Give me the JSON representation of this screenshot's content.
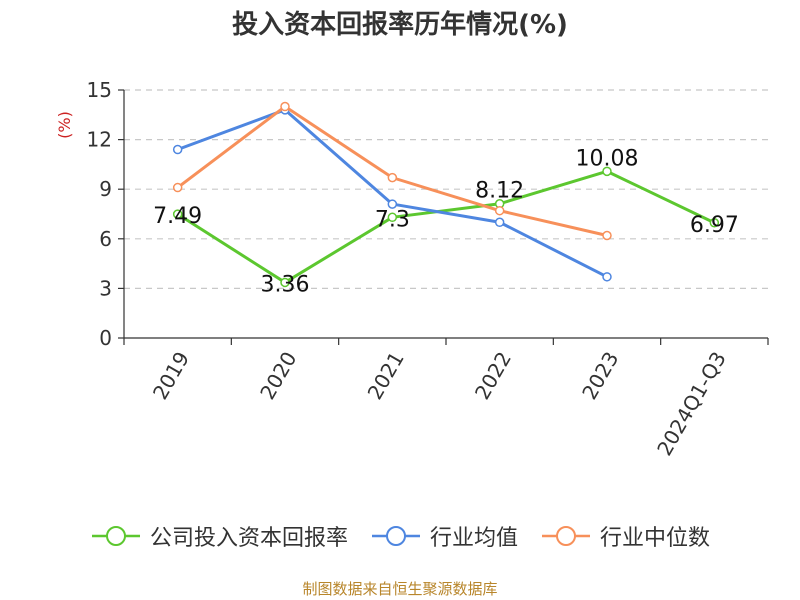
{
  "chart_data": {
    "type": "line",
    "title": "投入资本回报率历年情况(%)",
    "ylabel": "(%)",
    "categories": [
      "2019",
      "2020",
      "2021",
      "2022",
      "2023",
      "2024Q1-Q3"
    ],
    "ylim": [
      0,
      15
    ],
    "yticks": [
      0,
      3,
      6,
      9,
      12,
      15
    ],
    "grid": true,
    "legend_position": "bottom",
    "series": [
      {
        "name": "公司投入资本回报率",
        "color": "#5cc72f",
        "values": [
          7.49,
          3.36,
          7.3,
          8.12,
          10.08,
          6.97
        ],
        "labels": [
          "7.49",
          "3.36",
          "7.3",
          "8.12",
          "10.08",
          "6.97"
        ]
      },
      {
        "name": "行业均值",
        "color": "#4e86e0",
        "values": [
          11.4,
          13.8,
          8.1,
          7.0,
          3.7,
          null
        ]
      },
      {
        "name": "行业中位数",
        "color": "#f7905a",
        "values": [
          9.1,
          14.0,
          9.7,
          7.7,
          6.2,
          null
        ]
      }
    ]
  },
  "source": "制图数据来自恒生聚源数据库"
}
